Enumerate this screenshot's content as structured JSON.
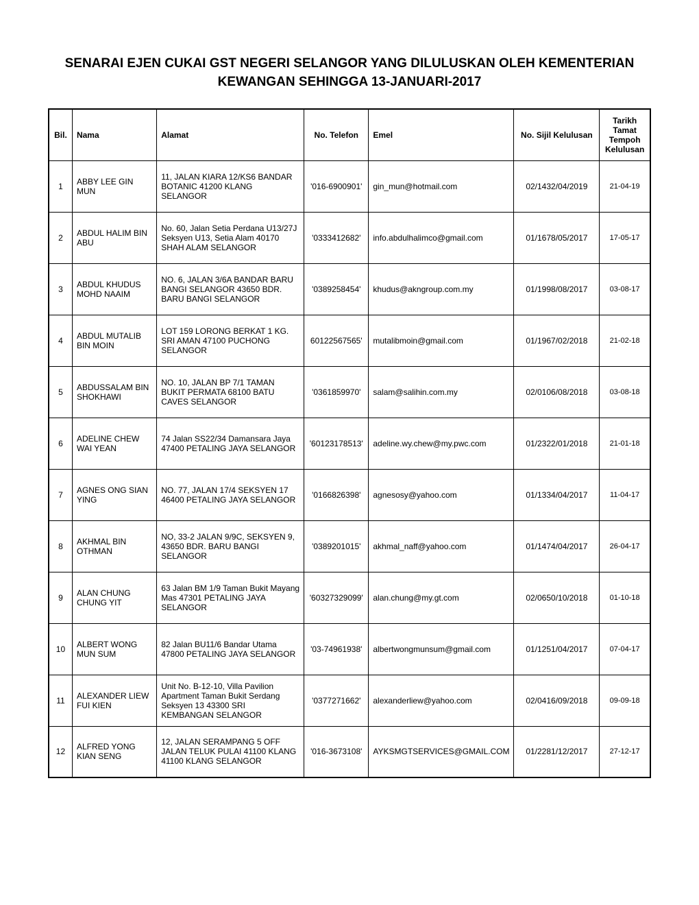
{
  "title": "SENARAI EJEN CUKAI GST NEGERI SELANGOR YANG DILULUSKAN OLEH KEMENTERIAN KEWANGAN SEHINGGA 13-JANUARI-2017",
  "headers": {
    "bil": "Bil.",
    "nama": "Nama",
    "alamat": "Alamat",
    "telefon": "No. Telefon",
    "emel": "Emel",
    "sijil": "No. Sijil Kelulusan",
    "tarikh": "Tarikh Tamat Tempoh Kelulusan"
  },
  "rows": [
    {
      "bil": "1",
      "nama": "ABBY LEE GIN MUN",
      "alamat": "11, JALAN KIARA 12/KS6 BANDAR BOTANIC  41200 KLANG SELANGOR",
      "telefon": "'016-6900901'",
      "emel": "gin_mun@hotmail.com",
      "sijil": "02/1432/04/2019",
      "tarikh": "21-04-19"
    },
    {
      "bil": "2",
      "nama": "ABDUL HALIM BIN ABU",
      "alamat": "No. 60, Jalan Setia Perdana U13/27J Seksyen U13, Setia Alam  40170 SHAH ALAM SELANGOR",
      "telefon": "'0333412682'",
      "emel": "info.abdulhalimco@gmail.com",
      "sijil": "01/1678/05/2017",
      "tarikh": "17-05-17"
    },
    {
      "bil": "3",
      "nama": "ABDUL KHUDUS MOHD NAAIM",
      "alamat": "NO. 6, JALAN 3/6A BANDAR BARU BANGI SELANGOR 43650 BDR. BARU BANGI SELANGOR",
      "telefon": "'0389258454'",
      "emel": "khudus@akngroup.com.my",
      "sijil": "01/1998/08/2017",
      "tarikh": "03-08-17"
    },
    {
      "bil": "4",
      "nama": "ABDUL MUTALIB BIN MOIN",
      "alamat": "LOT 159 LORONG BERKAT 1 KG. SRI AMAN 47100 PUCHONG SELANGOR",
      "telefon": "60122567565'",
      "emel": "mutalibmoin@gmail.com",
      "sijil": "01/1967/02/2018",
      "tarikh": "21-02-18"
    },
    {
      "bil": "5",
      "nama": "ABDUSSALAM BIN SHOKHAWI",
      "alamat": "NO. 10, JALAN BP 7/1 TAMAN BUKIT PERMATA  68100 BATU CAVES SELANGOR",
      "telefon": "'0361859970'",
      "emel": "salam@salihin.com.my",
      "sijil": "02/0106/08/2018",
      "tarikh": "03-08-18"
    },
    {
      "bil": "6",
      "nama": "ADELINE CHEW WAI YEAN",
      "alamat": "74 Jalan SS22/34 Damansara Jaya  47400 PETALING JAYA SELANGOR",
      "telefon": "'60123178513'",
      "emel": "adeline.wy.chew@my.pwc.com",
      "sijil": "01/2322/01/2018",
      "tarikh": "21-01-18"
    },
    {
      "bil": "7",
      "nama": "AGNES ONG SIAN YING",
      "alamat": "NO. 77, JALAN 17/4 SEKSYEN 17  46400 PETALING JAYA SELANGOR",
      "telefon": "'0166826398'",
      "emel": "agnesosy@yahoo.com",
      "sijil": "01/1334/04/2017",
      "tarikh": "11-04-17"
    },
    {
      "bil": "8",
      "nama": "AKHMAL BIN OTHMAN",
      "alamat": "NO, 33-2 JALAN 9/9C, SEKSYEN 9, 43650 BDR. BARU BANGI SELANGOR",
      "telefon": "'0389201015'",
      "emel": "akhmal_naff@yahoo.com",
      "sijil": "01/1474/04/2017",
      "tarikh": "26-04-17"
    },
    {
      "bil": "9",
      "nama": "ALAN CHUNG CHUNG YIT",
      "alamat": "63 Jalan BM 1/9 Taman Bukit Mayang Mas  47301 PETALING JAYA SELANGOR",
      "telefon": "'60327329099'",
      "emel": "alan.chung@my.gt.com",
      "sijil": "02/0650/10/2018",
      "tarikh": "01-10-18"
    },
    {
      "bil": "10",
      "nama": "ALBERT WONG MUN SUM",
      "alamat": "82 Jalan BU11/6 Bandar Utama  47800 PETALING JAYA SELANGOR",
      "telefon": "'03-74961938'",
      "emel": "albertwongmunsum@gmail.com",
      "sijil": "01/1251/04/2017",
      "tarikh": "07-04-17"
    },
    {
      "bil": "11",
      "nama": "ALEXANDER LIEW FUI KIEN",
      "alamat": "Unit No. B-12-10, Villa Pavilion Apartment Taman Bukit Serdang Seksyen 13 43300 SRI KEMBANGAN SELANGOR",
      "telefon": "'0377271662'",
      "emel": "alexanderliew@yahoo.com",
      "sijil": "02/0416/09/2018",
      "tarikh": "09-09-18"
    },
    {
      "bil": "12",
      "nama": "ALFRED YONG KIAN SENG",
      "alamat": "12, JALAN SERAMPANG 5 OFF JALAN TELUK PULAI 41100 KLANG 41100 KLANG SELANGOR",
      "telefon": "'016-3673108'",
      "emel": "AYKSMGTSERVICES@GMAIL.COM",
      "sijil": "01/2281/12/2017",
      "tarikh": "27-12-17"
    }
  ]
}
